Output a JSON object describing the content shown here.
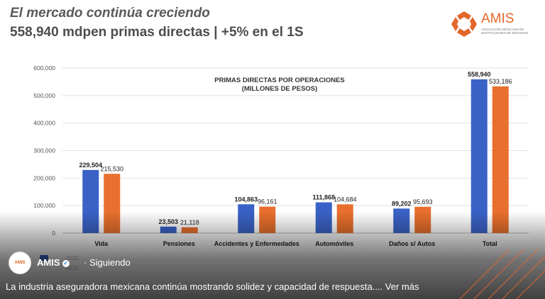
{
  "header": {
    "title": "El mercado continúa creciendo",
    "subtitle": "558,940 mdpen primas directas | +5% en el 1S"
  },
  "logo": {
    "name": "AMIS",
    "tagline": "ASOCIACIÓN MEXICANA DE INSTITUCIONES DE SEGUROS"
  },
  "colors": {
    "series_2025": "#3a62c6",
    "series_2024": "#e86f2d",
    "accent": "#e3672b"
  },
  "chart_data": {
    "type": "bar",
    "title": "PRIMAS DIRECTAS POR OPERACIONES",
    "subtitle": "(MILLONES DE PESOS)",
    "categories": [
      "Vida",
      "Pensiones",
      "Accidentes y Enfermedades",
      "Automóviles",
      "Daños s/ Autos",
      "Total"
    ],
    "series": [
      {
        "name": "2025",
        "values": [
          229504,
          23503,
          104863,
          111868,
          89202,
          558940
        ]
      },
      {
        "name": "2024",
        "values": [
          215530,
          21118,
          96161,
          104684,
          95693,
          533186
        ]
      }
    ],
    "value_labels": [
      [
        "229,504",
        "23,503",
        "104,863",
        "111,868",
        "89,202",
        "558,940"
      ],
      [
        "215,530",
        "21,118",
        "96,161",
        "104,684",
        "95,693",
        "533,186"
      ]
    ],
    "ylim": [
      0,
      600000
    ],
    "yticks": [
      0,
      100000,
      200000,
      300000,
      400000,
      500000,
      600000
    ],
    "ytick_labels": [
      "0",
      "100,000",
      "200,000",
      "300,000",
      "400,000",
      "500,000",
      "600,000"
    ],
    "grid": true,
    "legend_position": "bottom-left"
  },
  "legend": {
    "label_2025": "2025",
    "label_2025_hidden": "2025"
  },
  "post": {
    "account": "AMIS",
    "following": "· Siguiendo",
    "caption": "La industria aseguradora mexicana continúa mostrando solidez y capacidad de respuesta....",
    "see_more": " Ver más"
  }
}
